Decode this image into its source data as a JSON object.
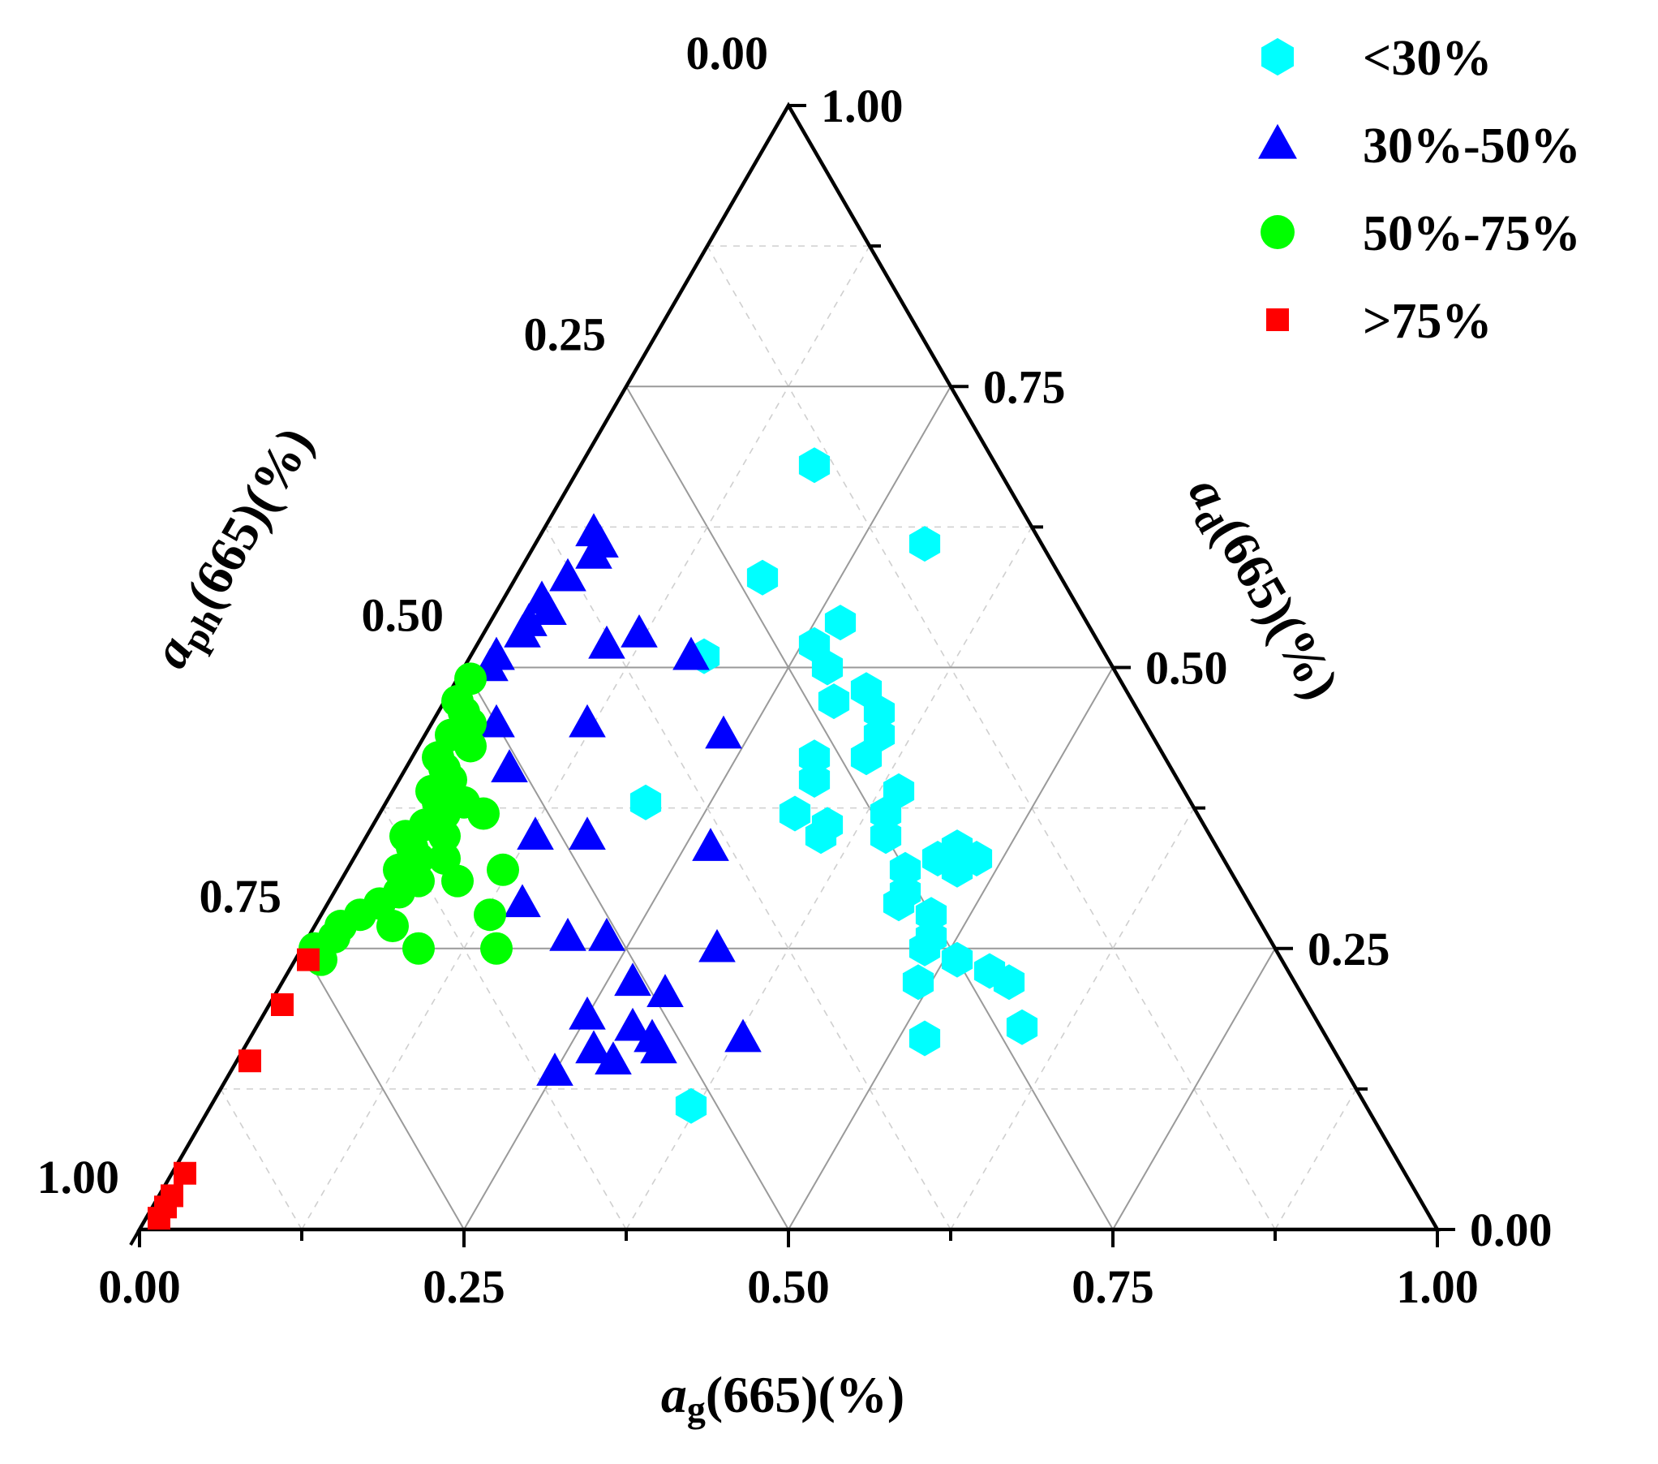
{
  "chart_data": {
    "type": "scatter",
    "subtype": "ternary",
    "title": "",
    "axes": {
      "bottom": {
        "label_italic": "a",
        "label_sub": "g",
        "label_rest": "(665)(%)",
        "ticks": [
          "0.00",
          "0.25",
          "0.50",
          "0.75",
          "1.00"
        ],
        "range": [
          0,
          1
        ]
      },
      "right": {
        "label_italic": "a",
        "label_sub": "d",
        "label_rest": "(665)(%)",
        "ticks": [
          "0.00",
          "0.25",
          "0.50",
          "0.75",
          "1.00"
        ],
        "range": [
          0,
          1
        ]
      },
      "left": {
        "label_italic": "a",
        "label_sub": "ph",
        "label_rest": "(665)(%)",
        "ticks": [
          "0.00",
          "0.25",
          "0.50",
          "0.75",
          "1.00"
        ],
        "range": [
          0,
          1
        ]
      }
    },
    "grid": true,
    "legend_position": "top-right",
    "series": [
      {
        "name": "<30%",
        "marker": "hexagon",
        "color": "#00FFFF",
        "points": [
          [
            0.18,
            0.68
          ],
          [
            0.19,
            0.58
          ],
          [
            0.26,
            0.52
          ],
          [
            0.28,
            0.5
          ],
          [
            0.3,
            0.61
          ],
          [
            0.27,
            0.54
          ],
          [
            0.18,
            0.51
          ],
          [
            0.32,
            0.48
          ],
          [
            0.3,
            0.47
          ],
          [
            0.34,
            0.46
          ],
          [
            0.35,
            0.44
          ],
          [
            0.35,
            0.42
          ],
          [
            0.31,
            0.42
          ],
          [
            0.32,
            0.4
          ],
          [
            0.32,
            0.37
          ],
          [
            0.35,
            0.36
          ],
          [
            0.35,
            0.35
          ],
          [
            0.39,
            0.39
          ],
          [
            0.39,
            0.37
          ],
          [
            0.4,
            0.35
          ],
          [
            0.43,
            0.32
          ],
          [
            0.44,
            0.3
          ],
          [
            0.45,
            0.33
          ],
          [
            0.46,
            0.34
          ],
          [
            0.44,
            0.29
          ],
          [
            0.48,
            0.33
          ],
          [
            0.47,
            0.32
          ],
          [
            0.47,
            0.28
          ],
          [
            0.48,
            0.25
          ],
          [
            0.49,
            0.22
          ],
          [
            0.48,
            0.26
          ],
          [
            0.51,
            0.24
          ],
          [
            0.54,
            0.23
          ],
          [
            0.56,
            0.22
          ],
          [
            0.59,
            0.18
          ],
          [
            0.52,
            0.17
          ],
          [
            0.37,
            0.11
          ],
          [
            0.2,
            0.38
          ]
        ]
      },
      {
        "name": "30%-50%",
        "marker": "triangle",
        "color": "#0000FF",
        "points": [
          [
            0.04,
            0.62
          ],
          [
            0.05,
            0.61
          ],
          [
            0.05,
            0.6
          ],
          [
            0.04,
            0.58
          ],
          [
            0.03,
            0.56
          ],
          [
            0.04,
            0.55
          ],
          [
            0.03,
            0.54
          ],
          [
            0.03,
            0.53
          ],
          [
            0.02,
            0.51
          ],
          [
            0.02,
            0.5
          ],
          [
            0.12,
            0.53
          ],
          [
            0.1,
            0.52
          ],
          [
            0.17,
            0.51
          ],
          [
            0.05,
            0.45
          ],
          [
            0.12,
            0.45
          ],
          [
            0.23,
            0.44
          ],
          [
            0.08,
            0.41
          ],
          [
            0.13,
            0.35
          ],
          [
            0.17,
            0.35
          ],
          [
            0.27,
            0.34
          ],
          [
            0.15,
            0.29
          ],
          [
            0.2,
            0.26
          ],
          [
            0.23,
            0.26
          ],
          [
            0.32,
            0.25
          ],
          [
            0.27,
            0.22
          ],
          [
            0.3,
            0.21
          ],
          [
            0.25,
            0.19
          ],
          [
            0.29,
            0.18
          ],
          [
            0.31,
            0.17
          ],
          [
            0.27,
            0.16
          ],
          [
            0.29,
            0.15
          ],
          [
            0.32,
            0.16
          ],
          [
            0.38,
            0.17
          ],
          [
            0.25,
            0.14
          ]
        ]
      },
      {
        "name": "50%-75%",
        "marker": "circle",
        "color": "#00FF00",
        "points": [
          [
            0.01,
            0.49
          ],
          [
            0.01,
            0.47
          ],
          [
            0.02,
            0.46
          ],
          [
            0.03,
            0.45
          ],
          [
            0.02,
            0.44
          ],
          [
            0.04,
            0.43
          ],
          [
            0.02,
            0.42
          ],
          [
            0.03,
            0.41
          ],
          [
            0.04,
            0.4
          ],
          [
            0.03,
            0.39
          ],
          [
            0.04,
            0.38
          ],
          [
            0.05,
            0.37
          ],
          [
            0.04,
            0.36
          ],
          [
            0.03,
            0.35
          ],
          [
            0.04,
            0.34
          ],
          [
            0.05,
            0.33
          ],
          [
            0.04,
            0.32
          ],
          [
            0.06,
            0.31
          ],
          [
            0.05,
            0.3
          ],
          [
            0.04,
            0.29
          ],
          [
            0.03,
            0.28
          ],
          [
            0.02,
            0.27
          ],
          [
            0.02,
            0.26
          ],
          [
            0.01,
            0.25
          ],
          [
            0.02,
            0.24
          ],
          [
            0.06,
            0.38
          ],
          [
            0.08,
            0.37
          ],
          [
            0.06,
            0.35
          ],
          [
            0.07,
            0.33
          ],
          [
            0.09,
            0.31
          ],
          [
            0.12,
            0.32
          ],
          [
            0.13,
            0.28
          ],
          [
            0.06,
            0.27
          ],
          [
            0.09,
            0.25
          ],
          [
            0.15,
            0.25
          ]
        ]
      },
      {
        "name": ">75%",
        "marker": "square",
        "color": "#FF0000",
        "points": [
          [
            0.01,
            0.24
          ],
          [
            0.01,
            0.2
          ],
          [
            0.01,
            0.15
          ],
          [
            0.01,
            0.05
          ],
          [
            0.01,
            0.03
          ],
          [
            0.01,
            0.02
          ],
          [
            0.01,
            0.01
          ]
        ]
      }
    ]
  }
}
